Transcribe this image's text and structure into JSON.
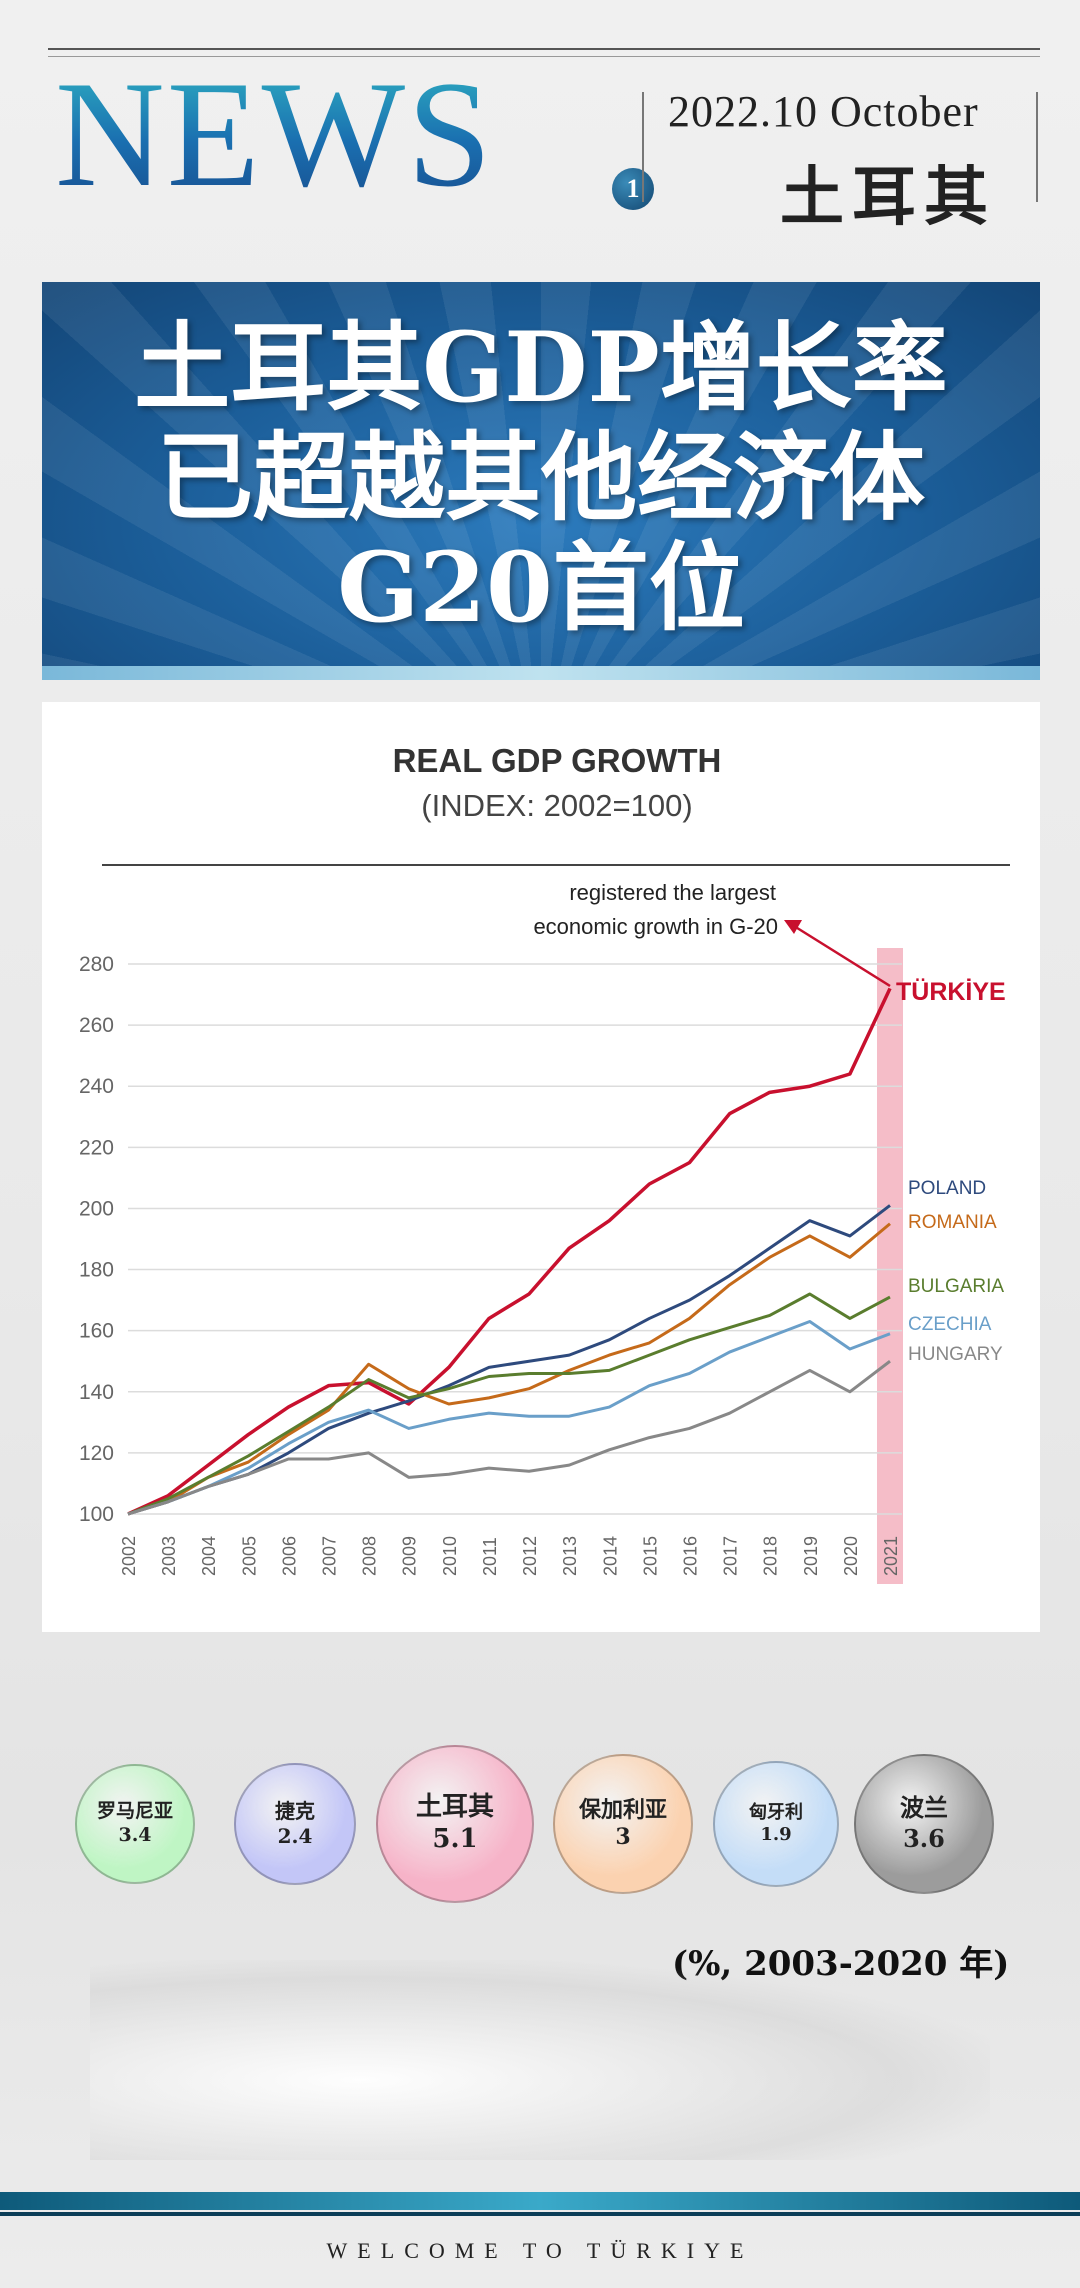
{
  "masthead": {
    "logo": "NEWS",
    "issue": "1",
    "date": "2022.10  October",
    "place": "土耳其"
  },
  "headline": {
    "lines": [
      "土耳其GDP增长率",
      "已超越其他经济体",
      "G20首位"
    ]
  },
  "colors": {
    "brand_blue": "#1b5d98",
    "turkiye": "#c8102e",
    "poland": "#2e4a7d",
    "romania": "#c56a1a",
    "bulgaria": "#5a7d2e",
    "czechia": "#6a9fc9",
    "hungary": "#888888",
    "highlight": "#f4b6c2"
  },
  "chart_data": {
    "type": "line",
    "title": "REAL GDP GROWTH",
    "subtitle": "(INDEX: 2002=100)",
    "annotation": [
      "registered the largest",
      "economic growth in G-20"
    ],
    "x": [
      "2002",
      "2003",
      "2004",
      "2005",
      "2006",
      "2007",
      "2008",
      "2009",
      "2010",
      "2011",
      "2012",
      "2013",
      "2014",
      "2015",
      "2016",
      "2017",
      "2018",
      "2019",
      "2020",
      "2021"
    ],
    "yticks": [
      100,
      120,
      140,
      160,
      180,
      200,
      220,
      240,
      260,
      280
    ],
    "ylim": [
      100,
      280
    ],
    "highlight_x": "2021",
    "grid": true,
    "series": [
      {
        "name": "TÜRKİYE",
        "color": "#c8102e",
        "values": [
          100,
          106,
          116,
          126,
          135,
          142,
          143,
          136,
          148,
          164,
          172,
          187,
          196,
          208,
          215,
          231,
          238,
          240,
          244,
          272
        ]
      },
      {
        "name": "POLAND",
        "color": "#2e4a7d",
        "values": [
          100,
          104,
          109,
          113,
          120,
          128,
          133,
          137,
          142,
          148,
          150,
          152,
          157,
          164,
          170,
          178,
          187,
          196,
          191,
          201
        ]
      },
      {
        "name": "ROMANIA",
        "color": "#c56a1a",
        "values": [
          100,
          104,
          112,
          117,
          126,
          134,
          149,
          141,
          136,
          138,
          141,
          147,
          152,
          156,
          164,
          175,
          184,
          191,
          184,
          195
        ]
      },
      {
        "name": "BULGARIA",
        "color": "#5a7d2e",
        "values": [
          100,
          105,
          112,
          119,
          127,
          135,
          144,
          138,
          141,
          145,
          146,
          146,
          147,
          152,
          157,
          161,
          165,
          172,
          164,
          171
        ]
      },
      {
        "name": "CZECHIA",
        "color": "#6a9fc9",
        "values": [
          100,
          104,
          109,
          115,
          123,
          130,
          134,
          128,
          131,
          133,
          132,
          132,
          135,
          142,
          146,
          153,
          158,
          163,
          154,
          159
        ]
      },
      {
        "name": "HUNGARY",
        "color": "#888888",
        "values": [
          100,
          104,
          109,
          113,
          118,
          118,
          120,
          112,
          113,
          115,
          114,
          116,
          121,
          125,
          128,
          133,
          140,
          147,
          140,
          150
        ]
      }
    ]
  },
  "bubbles": [
    {
      "label": "罗马尼亚",
      "value": "3.4",
      "color": "#bff5c4"
    },
    {
      "label": "捷克",
      "value": "2.4",
      "color": "#c3c6f7"
    },
    {
      "label": "土耳其",
      "value": "5.1",
      "color": "#f6b3c8"
    },
    {
      "label": "保加利亚",
      "value": "3",
      "color": "#fbd2b0"
    },
    {
      "label": "匈牙利",
      "value": "1.9",
      "color": "#c4ddf7"
    },
    {
      "label": "波兰",
      "value": "3.6",
      "color": "#9c9c9c"
    }
  ],
  "period": "(%, 2003-2020 年)",
  "footer": "WELCOME TO TÜRKIYE"
}
